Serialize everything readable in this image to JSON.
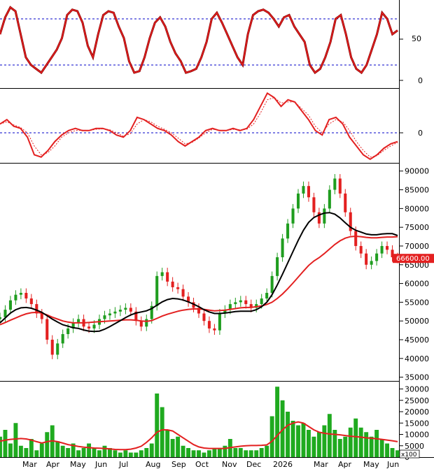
{
  "colors": {
    "background": "#ffffff",
    "up": "#1f9d1f",
    "down": "#e32020",
    "ma_long": "#e32020",
    "ma_short": "#000000",
    "volume": "#1faa1f",
    "volume_ma": "#e32020",
    "reference_line": "#0000c8",
    "price_tag": "#e32020"
  },
  "chart_data": [
    {
      "type": "line",
      "panel": "stochastic",
      "ylim": [
        0,
        100
      ],
      "y_ticks": [
        "50",
        "0"
      ],
      "reference_levels": [
        80,
        20
      ],
      "series": [
        {
          "values": [
            60,
            82,
            95,
            90,
            60,
            30,
            20,
            15,
            10,
            20,
            30,
            40,
            55,
            85,
            92,
            90,
            75,
            45,
            30,
            60,
            85,
            90,
            88,
            70,
            55,
            25,
            10,
            12,
            30,
            55,
            75,
            82,
            70,
            50,
            35,
            25,
            10,
            12,
            15,
            30,
            50,
            80,
            88,
            75,
            60,
            45,
            30,
            20,
            60,
            85,
            90,
            92,
            88,
            80,
            70,
            82,
            85,
            70,
            60,
            50,
            20,
            10,
            15,
            30,
            50,
            80,
            85,
            60,
            30,
            15,
            10,
            20,
            40,
            60,
            88,
            80,
            60,
            65
          ]
        }
      ]
    },
    {
      "type": "line",
      "panel": "oscillator",
      "y_ticks": [
        "0"
      ],
      "reference_levels": [
        0
      ],
      "series": [
        {
          "values": [
            0.2,
            0.3,
            0.15,
            0.1,
            -0.1,
            -0.5,
            -0.55,
            -0.4,
            -0.2,
            -0.05,
            0.05,
            0.1,
            0.05,
            0.05,
            0.1,
            0.1,
            0.05,
            -0.05,
            -0.1,
            0.05,
            0.35,
            0.3,
            0.2,
            0.1,
            0.05,
            -0.05,
            -0.2,
            -0.3,
            -0.2,
            -0.1,
            0.05,
            0.1,
            0.05,
            0.05,
            0.1,
            0.05,
            0.1,
            0.3,
            0.6,
            0.9,
            0.8,
            0.6,
            0.75,
            0.7,
            0.5,
            0.3,
            0.05,
            -0.05,
            0.3,
            0.35,
            0.2,
            -0.1,
            -0.3,
            -0.5,
            -0.6,
            -0.5,
            -0.35,
            -0.25,
            -0.2
          ]
        },
        {
          "values": [
            0.2,
            0.25,
            0.18,
            0.12,
            0.0,
            -0.3,
            -0.5,
            -0.45,
            -0.3,
            -0.1,
            0.0,
            0.05,
            0.06,
            0.05,
            0.08,
            0.09,
            0.07,
            0.0,
            -0.08,
            -0.02,
            0.2,
            0.3,
            0.25,
            0.15,
            0.08,
            0.0,
            -0.12,
            -0.25,
            -0.22,
            -0.12,
            0.0,
            0.08,
            0.06,
            0.05,
            0.08,
            0.07,
            0.08,
            0.2,
            0.45,
            0.75,
            0.8,
            0.68,
            0.7,
            0.7,
            0.55,
            0.4,
            0.15,
            0.0,
            0.2,
            0.3,
            0.25,
            0.05,
            -0.2,
            -0.4,
            -0.55,
            -0.52,
            -0.4,
            -0.3,
            -0.22
          ]
        }
      ]
    },
    {
      "type": "candlestick",
      "panel": "price",
      "ylim": [
        34000,
        92000
      ],
      "y_ticks": [
        "90000",
        "85000",
        "80000",
        "75000",
        "70000",
        "65000",
        "60000",
        "55000",
        "50000",
        "45000",
        "40000",
        "35000"
      ],
      "last_price_label": "66600.00",
      "close": [
        51000,
        53000,
        55500,
        57000,
        57500,
        56000,
        54500,
        52000,
        50500,
        45000,
        41000,
        44000,
        46500,
        48000,
        49500,
        50500,
        48500,
        48000,
        49000,
        50500,
        51500,
        52000,
        52500,
        53000,
        53500,
        52500,
        50000,
        48500,
        50500,
        54000,
        62000,
        63000,
        60500,
        59000,
        58500,
        56500,
        55000,
        53500,
        52000,
        50000,
        48000,
        47500,
        52000,
        53000,
        54500,
        55000,
        55500,
        54500,
        53500,
        54500,
        56000,
        57500,
        62000,
        67000,
        72000,
        76000,
        80000,
        84000,
        86000,
        83000,
        79000,
        76000,
        80000,
        85000,
        88000,
        84000,
        79000,
        74000,
        70000,
        68000,
        65000,
        66000,
        68000,
        70000,
        69000,
        67000,
        66600
      ],
      "series": [
        {
          "name": "",
          "values": [
            49000,
            49600,
            50200,
            50800,
            51400,
            51900,
            52200,
            52300,
            52100,
            51600,
            51000,
            50500,
            50000,
            49700,
            49500,
            49500,
            49500,
            49600,
            49700,
            49800,
            49900,
            50000,
            50100,
            50200,
            50300,
            50300,
            50200,
            50000,
            49900,
            50100,
            50700,
            51300,
            51800,
            52200,
            52600,
            52900,
            53100,
            53200,
            53200,
            53100,
            52900,
            52700,
            52800,
            52900,
            53100,
            53300,
            53500,
            53600,
            53600,
            53800,
            54000,
            54400,
            55000,
            56000,
            57200,
            58600,
            60100,
            61700,
            63300,
            64800,
            66000,
            66900,
            68000,
            69200,
            70400,
            71400,
            72100,
            72500,
            72600,
            72500,
            72300,
            72200,
            72200,
            72300,
            72400,
            72400,
            72500
          ]
        },
        {
          "name": "",
          "values": [
            49500,
            50800,
            52100,
            53000,
            53500,
            53600,
            53400,
            52900,
            52300,
            51400,
            50500,
            49700,
            49000,
            48600,
            48200,
            48000,
            47600,
            47300,
            47200,
            47300,
            47800,
            48500,
            49300,
            50100,
            50900,
            51600,
            52100,
            52400,
            52700,
            53300,
            54200,
            55100,
            55700,
            56000,
            55900,
            55600,
            55100,
            54500,
            53800,
            53000,
            52400,
            52000,
            52000,
            52100,
            52300,
            52500,
            52600,
            52600,
            52600,
            53000,
            53800,
            55000,
            57000,
            59600,
            62500,
            65500,
            68500,
            71500,
            74200,
            76300,
            77600,
            78300,
            78800,
            78900,
            78500,
            77500,
            76200,
            75000,
            74200,
            73700,
            73200,
            73000,
            73000,
            73200,
            73300,
            73300,
            72800
          ]
        }
      ]
    },
    {
      "type": "bar",
      "panel": "volume",
      "ylim": [
        0,
        32000
      ],
      "y_ticks": [
        "30000",
        "25000",
        "20000",
        "15000",
        "10000",
        "5000",
        "0"
      ],
      "unit_label": "x100",
      "values": [
        9000,
        12000,
        6000,
        15000,
        5000,
        4000,
        8000,
        3000,
        6000,
        11000,
        14000,
        7000,
        5000,
        4000,
        6000,
        3000,
        4000,
        6000,
        4000,
        3000,
        5000,
        4000,
        3000,
        2000,
        3000,
        2000,
        2000,
        3000,
        4000,
        6000,
        28000,
        22000,
        12000,
        8000,
        9000,
        5000,
        4000,
        3000,
        3000,
        2000,
        3000,
        4000,
        4000,
        5000,
        8000,
        4000,
        4000,
        3000,
        3000,
        3000,
        4000,
        5000,
        18000,
        31000,
        25000,
        20000,
        16000,
        14000,
        15000,
        12000,
        9000,
        11000,
        14000,
        19000,
        12000,
        8000,
        9000,
        13000,
        17000,
        13000,
        11000,
        9000,
        12000,
        8000,
        6000,
        4000,
        3000
      ],
      "series": [
        {
          "name": "",
          "values": [
            7000,
            7500,
            7800,
            8000,
            8200,
            8000,
            7500,
            6800,
            6200,
            6800,
            7200,
            6800,
            6200,
            5500,
            5100,
            4700,
            4400,
            4200,
            4000,
            3900,
            3800,
            3600,
            3400,
            3300,
            3300,
            3500,
            4000,
            4800,
            6500,
            8500,
            11000,
            12000,
            12000,
            11500,
            10000,
            8500,
            7000,
            5500,
            4500,
            4000,
            3800,
            3800,
            3800,
            3800,
            4200,
            4500,
            4800,
            5000,
            5100,
            5100,
            5200,
            5400,
            7000,
            9500,
            12000,
            14000,
            15000,
            15500,
            15000,
            13500,
            12000,
            11000,
            10500,
            10200,
            10000,
            9800,
            9500,
            9200,
            9000,
            8800,
            8500,
            8300,
            8100,
            7800,
            7500,
            7200,
            6800
          ]
        }
      ]
    }
  ],
  "x_axis_labels": [
    "Mar",
    "Apr",
    "May",
    "Jun",
    "Jul",
    "Aug",
    "Sep",
    "Oct",
    "Nov",
    "Dec",
    "2026",
    "Mar",
    "Apr",
    "May",
    "Jun"
  ]
}
